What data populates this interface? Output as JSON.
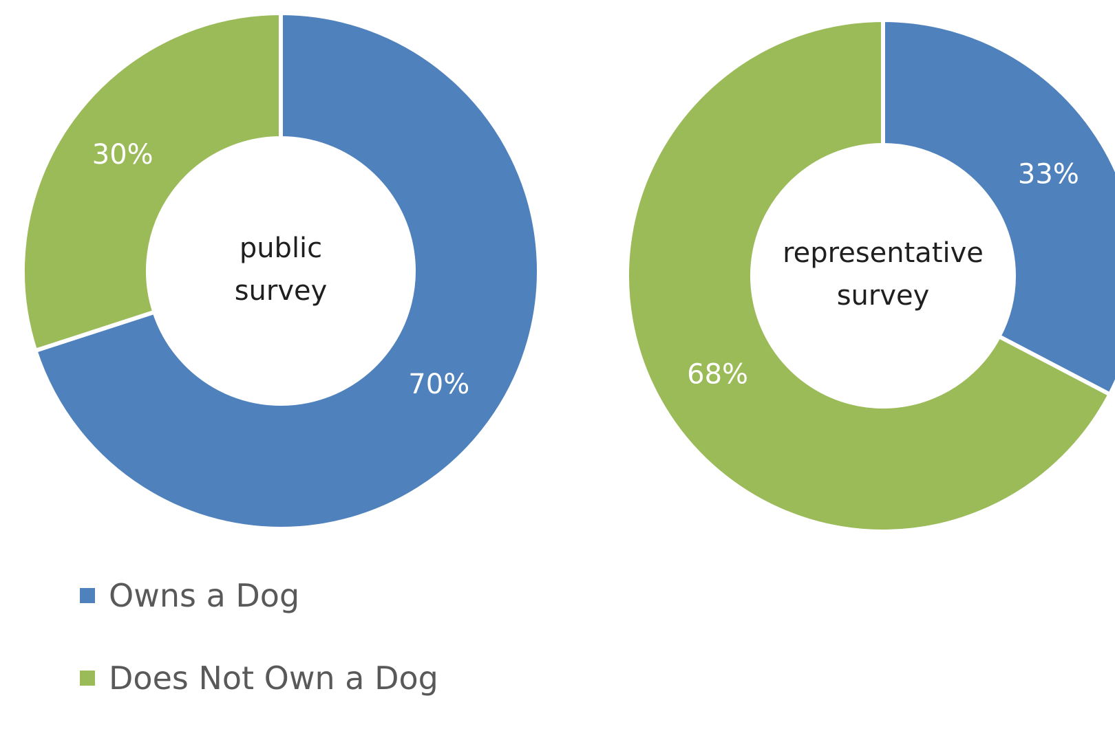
{
  "chart_data": [
    {
      "type": "pie",
      "donut": true,
      "center_label": [
        "public",
        "survey"
      ],
      "slices": [
        {
          "name": "Owns a Dog",
          "value": 70,
          "label": "70%",
          "color": "#4f81bd"
        },
        {
          "name": "Does Not Own a Dog",
          "value": 30,
          "label": "30%",
          "color": "#9bbb59"
        }
      ]
    },
    {
      "type": "pie",
      "donut": true,
      "center_label": [
        "representative",
        "survey"
      ],
      "slices": [
        {
          "name": "Owns a Dog",
          "value": 33,
          "label": "33%",
          "color": "#4f81bd"
        },
        {
          "name": "Does Not Own a Dog",
          "value": 68,
          "label": "68%",
          "color": "#9bbb59"
        }
      ]
    }
  ],
  "legend": {
    "placement": "bottom-left",
    "items": [
      {
        "label": "Owns a Dog",
        "color": "#4f81bd"
      },
      {
        "label": "Does Not Own a Dog",
        "color": "#9bbb59"
      }
    ]
  }
}
